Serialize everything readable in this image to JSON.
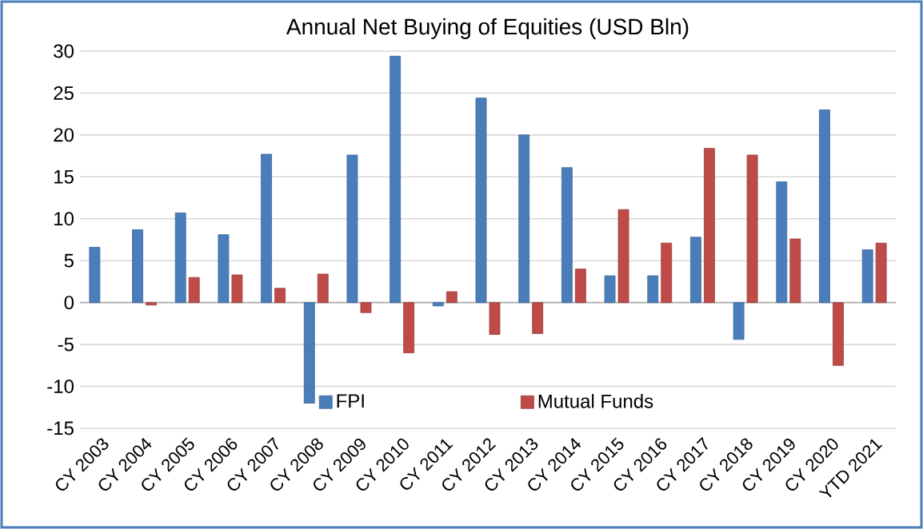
{
  "chart_data": {
    "type": "bar",
    "title": "Annual Net Buying of Equities (USD Bln)",
    "categories": [
      "CY 2003",
      "CY 2004",
      "CY 2005",
      "CY 2006",
      "CY 2007",
      "CY 2008",
      "CY 2009",
      "CY 2010",
      "CY 2011",
      "CY 2012",
      "CY 2013",
      "CY 2014",
      "CY 2015",
      "CY 2016",
      "CY 2017",
      "CY 2018",
      "CY 2019",
      "CY 2020",
      "YTD 2021"
    ],
    "series": [
      {
        "name": "FPI",
        "color": "#4a7ebb",
        "values": [
          6.6,
          8.7,
          10.7,
          8.1,
          17.7,
          -12.0,
          17.6,
          29.4,
          -0.4,
          24.4,
          20.0,
          16.1,
          3.2,
          3.2,
          7.8,
          -4.4,
          14.4,
          23.0,
          6.3
        ]
      },
      {
        "name": "Mutual Funds",
        "color": "#be4b48",
        "values": [
          null,
          -0.3,
          3.0,
          3.3,
          1.7,
          3.4,
          -1.2,
          -6.0,
          1.3,
          -3.8,
          -3.7,
          4.0,
          11.1,
          7.1,
          18.4,
          17.6,
          7.6,
          -7.5,
          7.1
        ]
      }
    ],
    "ylim": [
      -15,
      30
    ],
    "yticks": [
      -15,
      -10,
      -5,
      0,
      5,
      10,
      15,
      20,
      25,
      30
    ],
    "grid": "y",
    "legend": "bottom"
  }
}
